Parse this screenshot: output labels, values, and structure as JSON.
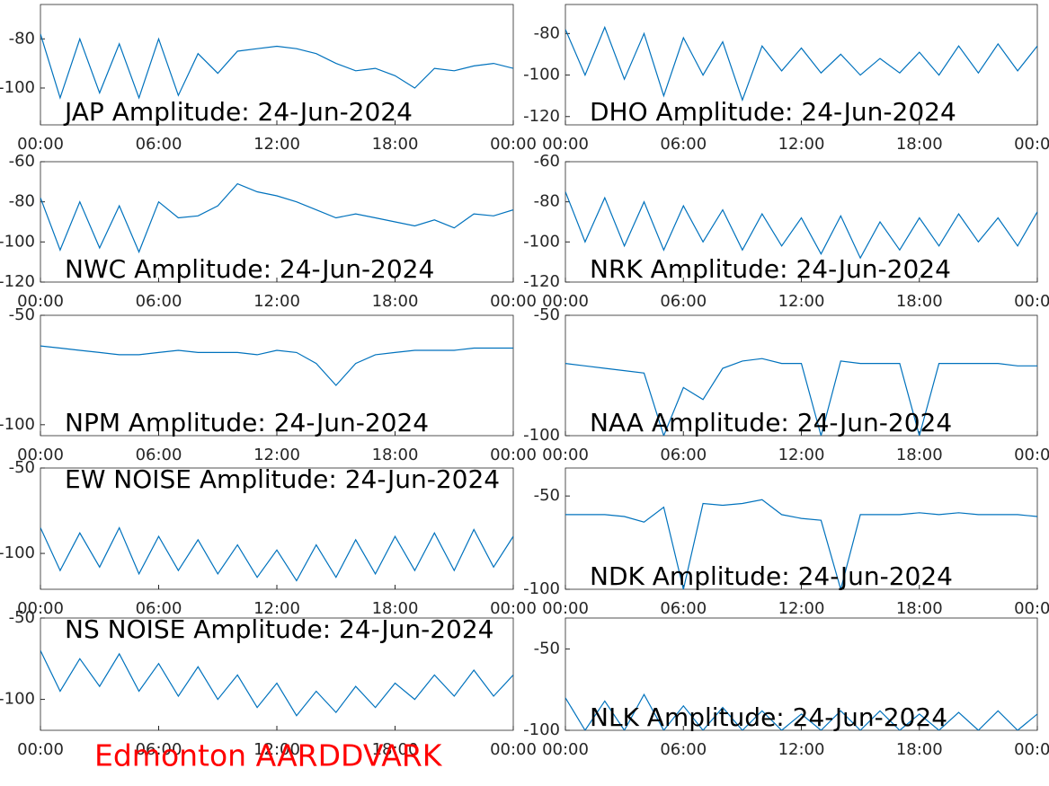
{
  "chart_data": [
    {
      "type": "line",
      "title": "JAP Amplitude: 24-Jun-2024",
      "title_position": "bottom",
      "color": "#0072bd",
      "x": [
        0,
        1,
        2,
        3,
        4,
        5,
        6,
        7,
        8,
        9,
        10,
        11,
        12,
        13,
        14,
        15,
        16,
        17,
        18,
        19,
        20,
        21,
        22,
        23,
        24
      ],
      "values": [
        -78,
        -104,
        -80,
        -102,
        -82,
        -104,
        -80,
        -103,
        -86,
        -94,
        -85,
        -84,
        -83,
        -84,
        -86,
        -90,
        -93,
        -92,
        -95,
        -100,
        -92,
        -93,
        -91,
        -90,
        -92
      ],
      "xlim": [
        0,
        24
      ],
      "xticks": [
        {
          "value": 0,
          "label": "00:00"
        },
        {
          "value": 6,
          "label": "06:00"
        },
        {
          "value": 12,
          "label": "12:00"
        },
        {
          "value": 18,
          "label": "18:00"
        },
        {
          "value": 24,
          "label": "00:00"
        }
      ],
      "ylim": [
        -115,
        -66
      ],
      "yticks": [
        -80,
        -100
      ]
    },
    {
      "type": "line",
      "title": "DHO Amplitude: 24-Jun-2024",
      "title_position": "bottom",
      "color": "#0072bd",
      "x": [
        0,
        1,
        2,
        3,
        4,
        5,
        6,
        7,
        8,
        9,
        10,
        11,
        12,
        13,
        14,
        15,
        16,
        17,
        18,
        19,
        20,
        21,
        22,
        23,
        24
      ],
      "values": [
        -78,
        -100,
        -77,
        -102,
        -80,
        -110,
        -82,
        -100,
        -84,
        -112,
        -86,
        -98,
        -87,
        -99,
        -90,
        -100,
        -92,
        -99,
        -89,
        -100,
        -86,
        -99,
        -85,
        -98,
        -86
      ],
      "xlim": [
        0,
        24
      ],
      "xticks": [
        {
          "value": 0,
          "label": "00:00"
        },
        {
          "value": 6,
          "label": "06:00"
        },
        {
          "value": 12,
          "label": "12:00"
        },
        {
          "value": 18,
          "label": "18:00"
        },
        {
          "value": 24,
          "label": "00:00"
        }
      ],
      "ylim": [
        -124,
        -66
      ],
      "yticks": [
        -80,
        -100,
        -120
      ]
    },
    {
      "type": "line",
      "title": "NWC Amplitude: 24-Jun-2024",
      "title_position": "bottom",
      "color": "#0072bd",
      "x": [
        0,
        1,
        2,
        3,
        4,
        5,
        6,
        7,
        8,
        9,
        10,
        11,
        12,
        13,
        14,
        15,
        16,
        17,
        18,
        19,
        20,
        21,
        22,
        23,
        24
      ],
      "values": [
        -78,
        -104,
        -80,
        -103,
        -82,
        -105,
        -80,
        -88,
        -87,
        -82,
        -71,
        -75,
        -77,
        -80,
        -84,
        -88,
        -86,
        -88,
        -90,
        -92,
        -89,
        -93,
        -86,
        -87,
        -84
      ],
      "xlim": [
        0,
        24
      ],
      "xticks": [
        {
          "value": 0,
          "label": "00:00"
        },
        {
          "value": 6,
          "label": "06:00"
        },
        {
          "value": 12,
          "label": "12:00"
        },
        {
          "value": 18,
          "label": "18:00"
        },
        {
          "value": 24,
          "label": "00:00"
        }
      ],
      "ylim": [
        -120,
        -60
      ],
      "yticks": [
        -60,
        -80,
        -100,
        -120
      ]
    },
    {
      "type": "line",
      "title": "NRK Amplitude: 24-Jun-2024",
      "title_position": "bottom",
      "color": "#0072bd",
      "x": [
        0,
        1,
        2,
        3,
        4,
        5,
        6,
        7,
        8,
        9,
        10,
        11,
        12,
        13,
        14,
        15,
        16,
        17,
        18,
        19,
        20,
        21,
        22,
        23,
        24
      ],
      "values": [
        -75,
        -100,
        -78,
        -102,
        -80,
        -104,
        -82,
        -100,
        -84,
        -104,
        -86,
        -102,
        -88,
        -106,
        -87,
        -108,
        -90,
        -104,
        -88,
        -102,
        -86,
        -100,
        -88,
        -102,
        -85
      ],
      "xlim": [
        0,
        24
      ],
      "xticks": [
        {
          "value": 0,
          "label": "00:00"
        },
        {
          "value": 6,
          "label": "06:00"
        },
        {
          "value": 12,
          "label": "12:00"
        },
        {
          "value": 18,
          "label": "18:00"
        },
        {
          "value": 24,
          "label": "00:00"
        }
      ],
      "ylim": [
        -120,
        -60
      ],
      "yticks": [
        -60,
        -80,
        -100,
        -120
      ]
    },
    {
      "type": "line",
      "title": "NPM Amplitude: 24-Jun-2024",
      "title_position": "bottom",
      "color": "#0072bd",
      "x": [
        0,
        1,
        2,
        3,
        4,
        5,
        6,
        7,
        8,
        9,
        10,
        11,
        12,
        13,
        14,
        15,
        16,
        17,
        18,
        19,
        20,
        21,
        22,
        23,
        24
      ],
      "values": [
        -64,
        -65,
        -66,
        -67,
        -68,
        -68,
        -67,
        -66,
        -67,
        -67,
        -67,
        -68,
        -66,
        -67,
        -72,
        -82,
        -72,
        -68,
        -67,
        -66,
        -66,
        -66,
        -65,
        -65,
        -65
      ],
      "xlim": [
        0,
        24
      ],
      "xticks": [
        {
          "value": 0,
          "label": "00:00"
        },
        {
          "value": 6,
          "label": "06:00"
        },
        {
          "value": 12,
          "label": "12:00"
        },
        {
          "value": 18,
          "label": "18:00"
        },
        {
          "value": 24,
          "label": "00:00"
        }
      ],
      "ylim": [
        -105,
        -50
      ],
      "yticks": [
        -50,
        -100
      ]
    },
    {
      "type": "line",
      "title": "NAA Amplitude: 24-Jun-2024",
      "title_position": "bottom",
      "color": "#0072bd",
      "x": [
        0,
        1,
        2,
        3,
        4,
        5,
        6,
        7,
        8,
        9,
        10,
        11,
        12,
        13,
        14,
        15,
        16,
        17,
        18,
        19,
        20,
        21,
        22,
        23,
        24
      ],
      "values": [
        -70,
        -71,
        -72,
        -73,
        -74,
        -100,
        -80,
        -85,
        -72,
        -69,
        -68,
        -70,
        -70,
        -100,
        -69,
        -70,
        -70,
        -70,
        -100,
        -70,
        -70,
        -70,
        -70,
        -71,
        -71
      ],
      "xlim": [
        0,
        24
      ],
      "xticks": [
        {
          "value": 0,
          "label": "00:00"
        },
        {
          "value": 6,
          "label": "06:00"
        },
        {
          "value": 12,
          "label": "12:00"
        },
        {
          "value": 18,
          "label": "18:00"
        },
        {
          "value": 24,
          "label": "00:00"
        }
      ],
      "ylim": [
        -100,
        -50
      ],
      "yticks": [
        -50,
        -100
      ]
    },
    {
      "type": "line",
      "title": "EW NOISE Amplitude: 24-Jun-2024",
      "title_position": "top",
      "color": "#0072bd",
      "x": [
        0,
        1,
        2,
        3,
        4,
        5,
        6,
        7,
        8,
        9,
        10,
        11,
        12,
        13,
        14,
        15,
        16,
        17,
        18,
        19,
        20,
        21,
        22,
        23,
        24
      ],
      "values": [
        -85,
        -110,
        -88,
        -108,
        -85,
        -112,
        -90,
        -110,
        -92,
        -112,
        -95,
        -114,
        -98,
        -116,
        -95,
        -114,
        -92,
        -112,
        -90,
        -110,
        -88,
        -110,
        -86,
        -108,
        -90
      ],
      "xlim": [
        0,
        24
      ],
      "xticks": [
        {
          "value": 0,
          "label": "00:00"
        },
        {
          "value": 6,
          "label": "06:00"
        },
        {
          "value": 12,
          "label": "12:00"
        },
        {
          "value": 18,
          "label": "18:00"
        },
        {
          "value": 24,
          "label": "00:00"
        }
      ],
      "ylim": [
        -121,
        -50
      ],
      "yticks": [
        -50,
        -100
      ]
    },
    {
      "type": "line",
      "title": "NDK Amplitude: 24-Jun-2024",
      "title_position": "bottom",
      "color": "#0072bd",
      "x": [
        0,
        1,
        2,
        3,
        4,
        5,
        6,
        7,
        8,
        9,
        10,
        11,
        12,
        13,
        14,
        15,
        16,
        17,
        18,
        19,
        20,
        21,
        22,
        23,
        24
      ],
      "values": [
        -60,
        -60,
        -60,
        -61,
        -64,
        -56,
        -100,
        -54,
        -55,
        -54,
        -52,
        -60,
        -62,
        -63,
        -100,
        -60,
        -60,
        -60,
        -59,
        -60,
        -59,
        -60,
        -60,
        -60,
        -61
      ],
      "xlim": [
        0,
        24
      ],
      "xticks": [
        {
          "value": 0,
          "label": "00:00"
        },
        {
          "value": 6,
          "label": "06:00"
        },
        {
          "value": 12,
          "label": "12:00"
        },
        {
          "value": 18,
          "label": "18:00"
        },
        {
          "value": 24,
          "label": "00:00"
        }
      ],
      "ylim": [
        -100,
        -35
      ],
      "yticks": [
        -50,
        -100
      ]
    },
    {
      "type": "line",
      "title": "NS NOISE Amplitude: 24-Jun-2024",
      "title_position": "top",
      "color": "#0072bd",
      "x": [
        0,
        1,
        2,
        3,
        4,
        5,
        6,
        7,
        8,
        9,
        10,
        11,
        12,
        13,
        14,
        15,
        16,
        17,
        18,
        19,
        20,
        21,
        22,
        23,
        24
      ],
      "values": [
        -70,
        -95,
        -75,
        -92,
        -72,
        -95,
        -78,
        -98,
        -80,
        -100,
        -85,
        -105,
        -90,
        -110,
        -95,
        -108,
        -92,
        -105,
        -90,
        -100,
        -85,
        -98,
        -82,
        -98,
        -85
      ],
      "xlim": [
        0,
        24
      ],
      "xticks": [
        {
          "value": 0,
          "label": "00:00"
        },
        {
          "value": 6,
          "label": "06:00"
        },
        {
          "value": 12,
          "label": "12:00"
        },
        {
          "value": 18,
          "label": "18:00"
        },
        {
          "value": 24,
          "label": "00:00"
        }
      ],
      "ylim": [
        -119,
        -50
      ],
      "yticks": [
        -50,
        -100
      ]
    },
    {
      "type": "line",
      "title": "NLK Amplitude: 24-Jun-2024",
      "title_position": "bottom",
      "color": "#0072bd",
      "x": [
        0,
        1,
        2,
        3,
        4,
        5,
        6,
        7,
        8,
        9,
        10,
        11,
        12,
        13,
        14,
        15,
        16,
        17,
        18,
        19,
        20,
        21,
        22,
        23,
        24
      ],
      "values": [
        -80,
        -100,
        -82,
        -100,
        -78,
        -100,
        -85,
        -100,
        -86,
        -100,
        -88,
        -100,
        -90,
        -100,
        -88,
        -100,
        -88,
        -100,
        -90,
        -100,
        -89,
        -100,
        -88,
        -100,
        -90
      ],
      "xlim": [
        0,
        24
      ],
      "xticks": [
        {
          "value": 0,
          "label": "00:00"
        },
        {
          "value": 6,
          "label": "06:00"
        },
        {
          "value": 12,
          "label": "12:00"
        },
        {
          "value": 18,
          "label": "18:00"
        },
        {
          "value": 24,
          "label": "00:00"
        }
      ],
      "ylim": [
        -100,
        -31
      ],
      "yticks": [
        -50,
        -100
      ]
    }
  ],
  "footer": "Edmonton AARDDVARK"
}
